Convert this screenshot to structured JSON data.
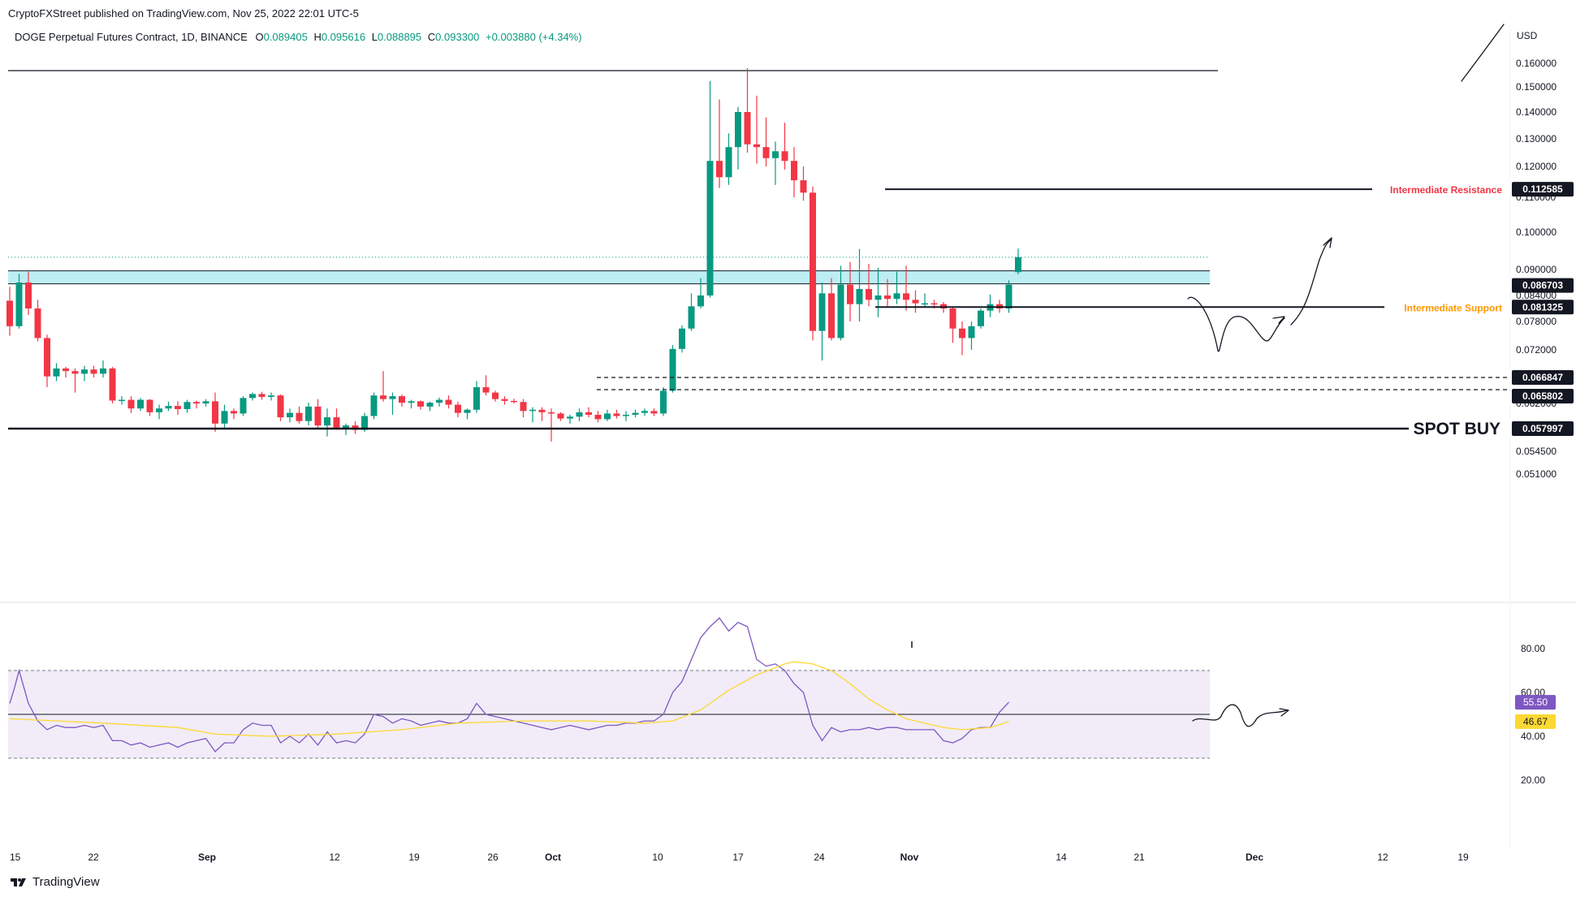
{
  "header": {
    "published": "CryptoFXStreet published on TradingView.com, Nov 25, 2022 22:01 UTC-5",
    "symbol": "DOGE Perpetual Futures Contract, 1D, BINANCE",
    "o_label": "O",
    "o": "0.089405",
    "h_label": "H",
    "h": "0.095616",
    "l_label": "L",
    "l": "0.088895",
    "c_label": "C",
    "c": "0.093300",
    "change": "+0.003880 (+4.34%)"
  },
  "currency": "USD",
  "footer": {
    "brand": "TradingView"
  },
  "levels": {
    "resistance": {
      "label": "Intermediate Resistance",
      "value": "0.112585",
      "color": "#f23645"
    },
    "zone_top": {
      "value": "0.086703"
    },
    "support": {
      "label": "Intermediate Support",
      "value": "0.081325",
      "color": "#ff9800"
    },
    "dash1": {
      "value": "0.066847"
    },
    "dash2": {
      "value": "0.065802"
    },
    "spot_buy": {
      "label": "SPOT BUY",
      "value": "0.057997"
    }
  },
  "rsi": {
    "value": "55.50",
    "ma_value": "46.67",
    "rsi_color": "#7e57c2",
    "ma_color": "#fdd835"
  },
  "colors": {
    "up": "#089981",
    "down": "#f23645",
    "zone": "#b2ebf2",
    "rsi_band": "#ede7f6"
  },
  "chart_data": {
    "type": "candlestick",
    "symbol": "DOGE Perpetual Futures Contract",
    "timeframe": "1D",
    "y_ticks": [
      "0.160000",
      "0.150000",
      "0.140000",
      "0.130000",
      "0.120000",
      "0.110000",
      "0.100000",
      "0.090000",
      "0.084000",
      "0.078000",
      "0.072000",
      "0.062000",
      "0.054500",
      "0.051000"
    ],
    "x_ticks": [
      "15",
      "22",
      "Sep",
      "12",
      "19",
      "26",
      "Oct",
      "10",
      "17",
      "24",
      "Nov",
      "14",
      "21",
      "Dec",
      "12",
      "19"
    ],
    "rsi_ticks": [
      "80.00",
      "60.00",
      "40.00",
      "20.00"
    ],
    "candles": [
      [
        0.0828,
        0.086,
        0.075,
        0.077
      ],
      [
        0.077,
        0.089,
        0.0765,
        0.087
      ],
      [
        0.087,
        0.0895,
        0.0795,
        0.081
      ],
      [
        0.081,
        0.083,
        0.0738,
        0.0745
      ],
      [
        0.0745,
        0.0752,
        0.066,
        0.067
      ],
      [
        0.067,
        0.0695,
        0.0665,
        0.0685
      ],
      [
        0.0685,
        0.0688,
        0.0668,
        0.068
      ],
      [
        0.068,
        0.0685,
        0.065,
        0.0675
      ],
      [
        0.0675,
        0.069,
        0.0665,
        0.0683
      ],
      [
        0.0683,
        0.069,
        0.0668,
        0.0675
      ],
      [
        0.0675,
        0.07,
        0.0668,
        0.0685
      ],
      [
        0.0685,
        0.0688,
        0.062,
        0.0628
      ],
      [
        0.0628,
        0.064,
        0.0618,
        0.063
      ],
      [
        0.063,
        0.064,
        0.0605,
        0.0612
      ],
      [
        0.0612,
        0.0635,
        0.0608,
        0.063
      ],
      [
        0.063,
        0.0632,
        0.06,
        0.0606
      ],
      [
        0.0606,
        0.0618,
        0.0595,
        0.0612
      ],
      [
        0.0612,
        0.0625,
        0.0608,
        0.0616
      ],
      [
        0.0616,
        0.0626,
        0.0602,
        0.0611
      ],
      [
        0.0611,
        0.063,
        0.0605,
        0.0624
      ],
      [
        0.0624,
        0.0628,
        0.0612,
        0.062
      ],
      [
        0.062,
        0.0632,
        0.0615,
        0.0626
      ],
      [
        0.0626,
        0.065,
        0.0575,
        0.0588
      ],
      [
        0.0588,
        0.0618,
        0.058,
        0.0608
      ],
      [
        0.0608,
        0.0612,
        0.0595,
        0.0604
      ],
      [
        0.0604,
        0.064,
        0.06,
        0.0635
      ],
      [
        0.0635,
        0.065,
        0.0628,
        0.0646
      ],
      [
        0.0646,
        0.0652,
        0.063,
        0.0638
      ],
      [
        0.0638,
        0.065,
        0.0628,
        0.0642
      ],
      [
        0.0642,
        0.0645,
        0.0592,
        0.0598
      ],
      [
        0.0598,
        0.0612,
        0.059,
        0.0605
      ],
      [
        0.0605,
        0.0615,
        0.0588,
        0.0592
      ],
      [
        0.0592,
        0.0622,
        0.0585,
        0.0615
      ],
      [
        0.0615,
        0.0632,
        0.058,
        0.0585
      ],
      [
        0.0585,
        0.0612,
        0.0568,
        0.0598
      ],
      [
        0.0598,
        0.0612,
        0.0578,
        0.0581
      ],
      [
        0.0581,
        0.0588,
        0.057,
        0.0585
      ],
      [
        0.0585,
        0.0592,
        0.0572,
        0.0578
      ],
      [
        0.0578,
        0.0605,
        0.0575,
        0.06
      ],
      [
        0.06,
        0.065,
        0.0595,
        0.0642
      ],
      [
        0.0642,
        0.068,
        0.0625,
        0.0632
      ],
      [
        0.0632,
        0.065,
        0.0602,
        0.064
      ],
      [
        0.064,
        0.0645,
        0.0615,
        0.0622
      ],
      [
        0.0622,
        0.063,
        0.0612,
        0.0626
      ],
      [
        0.0626,
        0.0628,
        0.061,
        0.0615
      ],
      [
        0.0615,
        0.0625,
        0.0608,
        0.0622
      ],
      [
        0.0622,
        0.0636,
        0.0615,
        0.063
      ],
      [
        0.063,
        0.0642,
        0.0612,
        0.0618
      ],
      [
        0.0618,
        0.0625,
        0.0598,
        0.0605
      ],
      [
        0.0605,
        0.0612,
        0.0595,
        0.061
      ],
      [
        0.061,
        0.0665,
        0.0605,
        0.066
      ],
      [
        0.066,
        0.0672,
        0.0642,
        0.065
      ],
      [
        0.065,
        0.0655,
        0.0625,
        0.0632
      ],
      [
        0.0632,
        0.064,
        0.0618,
        0.0627
      ],
      [
        0.0627,
        0.0633,
        0.062,
        0.0624
      ],
      [
        0.0624,
        0.0632,
        0.0598,
        0.0608
      ],
      [
        0.0608,
        0.0614,
        0.059,
        0.061
      ],
      [
        0.061,
        0.0614,
        0.0592,
        0.0606
      ],
      [
        0.0606,
        0.0612,
        0.056,
        0.0604
      ],
      [
        0.0604,
        0.0606,
        0.0592,
        0.0596
      ],
      [
        0.0596,
        0.0602,
        0.0588,
        0.0599
      ],
      [
        0.0599,
        0.0612,
        0.0592,
        0.0606
      ],
      [
        0.0606,
        0.0614,
        0.0598,
        0.0602
      ],
      [
        0.0602,
        0.0608,
        0.059,
        0.0595
      ],
      [
        0.0595,
        0.061,
        0.0592,
        0.0604
      ],
      [
        0.0604,
        0.061,
        0.0596,
        0.06
      ],
      [
        0.06,
        0.0608,
        0.0592,
        0.0602
      ],
      [
        0.0602,
        0.061,
        0.0598,
        0.0605
      ],
      [
        0.0605,
        0.0612,
        0.06,
        0.0608
      ],
      [
        0.0608,
        0.0612,
        0.06,
        0.0604
      ],
      [
        0.0604,
        0.066,
        0.06,
        0.0655
      ],
      [
        0.0655,
        0.073,
        0.065,
        0.0722
      ],
      [
        0.0722,
        0.0772,
        0.0715,
        0.0765
      ],
      [
        0.0765,
        0.0845,
        0.076,
        0.0815
      ],
      [
        0.0815,
        0.088,
        0.081,
        0.084
      ],
      [
        0.084,
        0.1525,
        0.0835,
        0.122
      ],
      [
        0.122,
        0.145,
        0.113,
        0.1165
      ],
      [
        0.1165,
        0.132,
        0.114,
        0.127
      ],
      [
        0.127,
        0.142,
        0.119,
        0.14
      ],
      [
        0.14,
        0.158,
        0.125,
        0.128
      ],
      [
        0.128,
        0.1465,
        0.121,
        0.127
      ],
      [
        0.127,
        0.138,
        0.12,
        0.123
      ],
      [
        0.123,
        0.129,
        0.114,
        0.1255
      ],
      [
        0.1255,
        0.136,
        0.119,
        0.122
      ],
      [
        0.122,
        0.127,
        0.11,
        0.1155
      ],
      [
        0.1155,
        0.12,
        0.109,
        0.1115
      ],
      [
        0.1115,
        0.1135,
        0.074,
        0.076
      ],
      [
        0.076,
        0.087,
        0.07,
        0.0845
      ],
      [
        0.0845,
        0.088,
        0.074,
        0.0745
      ],
      [
        0.0745,
        0.091,
        0.074,
        0.0865
      ],
      [
        0.0865,
        0.092,
        0.078,
        0.082
      ],
      [
        0.082,
        0.0955,
        0.078,
        0.0855
      ],
      [
        0.0855,
        0.0915,
        0.0815,
        0.083
      ],
      [
        0.083,
        0.0905,
        0.079,
        0.084
      ],
      [
        0.084,
        0.0878,
        0.0815,
        0.0832
      ],
      [
        0.0832,
        0.0895,
        0.082,
        0.0845
      ],
      [
        0.0845,
        0.091,
        0.0805,
        0.083
      ],
      [
        0.083,
        0.0852,
        0.08,
        0.0822
      ],
      [
        0.0822,
        0.0845,
        0.0815,
        0.0822
      ],
      [
        0.0822,
        0.083,
        0.081,
        0.082
      ],
      [
        0.082,
        0.0825,
        0.08,
        0.081
      ],
      [
        0.081,
        0.0815,
        0.0735,
        0.0765
      ],
      [
        0.0765,
        0.078,
        0.071,
        0.0745
      ],
      [
        0.0745,
        0.078,
        0.072,
        0.077
      ],
      [
        0.077,
        0.081,
        0.0765,
        0.0805
      ],
      [
        0.0805,
        0.0842,
        0.079,
        0.082
      ],
      [
        0.082,
        0.083,
        0.08,
        0.081
      ],
      [
        0.081,
        0.0875,
        0.08,
        0.0865
      ],
      [
        0.0894,
        0.0956,
        0.0889,
        0.0933
      ]
    ],
    "rsi": [
      [
        0,
        55
      ],
      [
        0.5,
        62
      ],
      [
        1,
        70
      ],
      [
        2,
        55
      ],
      [
        3,
        47
      ],
      [
        4,
        43
      ],
      [
        5,
        45
      ],
      [
        6,
        44
      ],
      [
        7,
        44
      ],
      [
        8,
        45
      ],
      [
        9,
        44
      ],
      [
        10,
        45
      ],
      [
        11,
        38
      ],
      [
        12,
        38
      ],
      [
        13,
        36
      ],
      [
        14,
        37
      ],
      [
        15,
        35
      ],
      [
        16,
        36
      ],
      [
        17,
        37
      ],
      [
        18,
        35
      ],
      [
        19,
        37
      ],
      [
        20,
        38
      ],
      [
        21,
        39
      ],
      [
        22,
        33
      ],
      [
        23,
        37
      ],
      [
        24,
        37
      ],
      [
        25,
        43
      ],
      [
        26,
        46
      ],
      [
        27,
        45
      ],
      [
        28,
        45
      ],
      [
        29,
        37
      ],
      [
        30,
        40
      ],
      [
        31,
        37
      ],
      [
        32,
        41
      ],
      [
        33,
        36
      ],
      [
        34,
        42
      ],
      [
        35,
        37
      ],
      [
        36,
        38
      ],
      [
        37,
        37
      ],
      [
        38,
        41
      ],
      [
        39,
        50
      ],
      [
        40,
        49
      ],
      [
        41,
        46
      ],
      [
        42,
        48
      ],
      [
        43,
        47
      ],
      [
        44,
        45
      ],
      [
        45,
        46
      ],
      [
        46,
        47
      ],
      [
        47,
        46
      ],
      [
        48,
        46
      ],
      [
        49,
        48
      ],
      [
        50,
        55
      ],
      [
        51,
        50
      ],
      [
        52,
        49
      ],
      [
        53,
        48
      ],
      [
        54,
        47
      ],
      [
        55,
        46
      ],
      [
        56,
        45
      ],
      [
        57,
        44
      ],
      [
        58,
        43
      ],
      [
        59,
        44
      ],
      [
        60,
        45
      ],
      [
        61,
        44
      ],
      [
        62,
        43
      ],
      [
        63,
        44
      ],
      [
        64,
        45
      ],
      [
        65,
        45
      ],
      [
        66,
        46
      ],
      [
        67,
        46
      ],
      [
        68,
        47
      ],
      [
        69,
        47
      ],
      [
        70,
        50
      ],
      [
        71,
        60
      ],
      [
        72,
        65
      ],
      [
        73,
        75
      ],
      [
        74,
        85
      ],
      [
        75,
        90
      ],
      [
        76,
        94
      ],
      [
        77,
        88
      ],
      [
        78,
        92
      ],
      [
        79,
        90
      ],
      [
        80,
        75
      ],
      [
        81,
        72
      ],
      [
        82,
        73
      ],
      [
        83,
        70
      ],
      [
        84,
        64
      ],
      [
        85,
        60
      ],
      [
        86,
        45
      ],
      [
        87,
        38
      ],
      [
        88,
        44
      ],
      [
        89,
        42
      ],
      [
        90,
        43
      ],
      [
        91,
        43
      ],
      [
        92,
        44
      ],
      [
        93,
        43
      ],
      [
        94,
        44
      ],
      [
        95,
        44
      ],
      [
        96,
        43
      ],
      [
        97,
        43
      ],
      [
        98,
        43
      ],
      [
        99,
        43
      ],
      [
        100,
        38
      ],
      [
        101,
        37
      ],
      [
        102,
        39
      ],
      [
        103,
        43
      ],
      [
        104,
        44
      ],
      [
        105,
        44
      ],
      [
        106,
        51
      ],
      [
        107,
        55.5
      ]
    ],
    "rsi_ma": [
      [
        0,
        48
      ],
      [
        10,
        46
      ],
      [
        18,
        44
      ],
      [
        22,
        41
      ],
      [
        28,
        40
      ],
      [
        35,
        41
      ],
      [
        42,
        43
      ],
      [
        48,
        46
      ],
      [
        55,
        47
      ],
      [
        62,
        47
      ],
      [
        68,
        46
      ],
      [
        71,
        47
      ],
      [
        74,
        52
      ],
      [
        77,
        61
      ],
      [
        80,
        68
      ],
      [
        83,
        73
      ],
      [
        84,
        74
      ],
      [
        86,
        73
      ],
      [
        88,
        70
      ],
      [
        90,
        64
      ],
      [
        92,
        57
      ],
      [
        94,
        52
      ],
      [
        96,
        48
      ],
      [
        98,
        46
      ],
      [
        100,
        44
      ],
      [
        102,
        43
      ],
      [
        105,
        44
      ],
      [
        107,
        46.67
      ]
    ]
  }
}
